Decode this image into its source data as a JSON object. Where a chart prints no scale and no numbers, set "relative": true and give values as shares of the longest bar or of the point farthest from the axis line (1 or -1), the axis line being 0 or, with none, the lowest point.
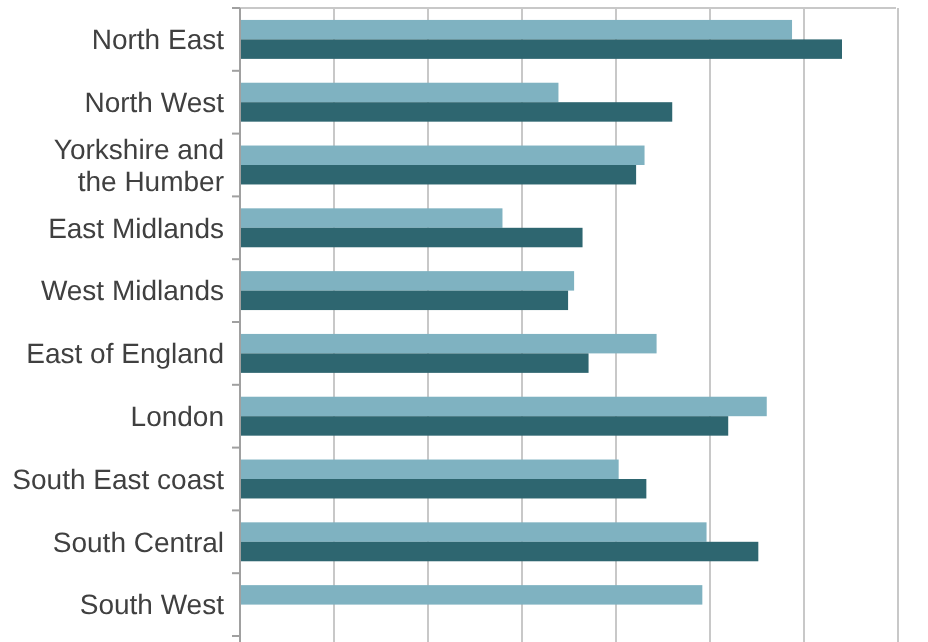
{
  "chart_data": {
    "type": "bar",
    "orientation": "horizontal",
    "relative": true,
    "grid": "x",
    "categories": [
      "North East",
      "North West",
      "Yorkshire and the Humber",
      "East Midlands",
      "West Midlands",
      "East of England",
      "London",
      "South East coast",
      "South Central",
      "South West"
    ],
    "series": [
      {
        "color": "#7fb2c1",
        "values": [
          0.917,
          0.529,
          0.672,
          0.436,
          0.555,
          0.692,
          0.875,
          0.629,
          0.775,
          0.768
        ]
      },
      {
        "color": "#2e6670",
        "values": [
          1,
          0.718,
          0.658,
          0.569,
          0.545,
          0.579,
          0.811,
          0.675,
          0.861,
          null
        ]
      }
    ]
  }
}
